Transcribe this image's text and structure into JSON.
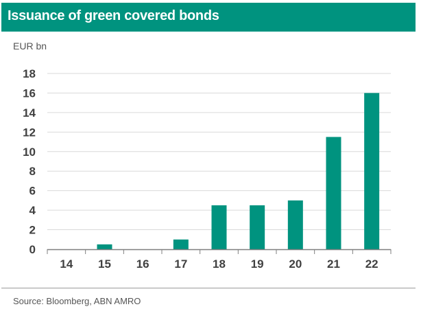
{
  "header": {
    "title": "Issuance of green covered bonds"
  },
  "footer": {
    "source": "Source: Bloomberg, ABN AMRO"
  },
  "chart_data": {
    "type": "bar",
    "title": "Issuance of green covered bonds",
    "ylabel": "EUR bn",
    "xlabel": "",
    "categories": [
      "14",
      "15",
      "16",
      "17",
      "18",
      "19",
      "20",
      "21",
      "22"
    ],
    "values": [
      0,
      0.5,
      0,
      1,
      4.5,
      4.5,
      5,
      11.5,
      16
    ],
    "ylim": [
      0,
      18
    ],
    "yticks": [
      0,
      2,
      4,
      6,
      8,
      10,
      12,
      14,
      16,
      18
    ],
    "grid": true,
    "legend": "none",
    "bar_color": "#00937f"
  }
}
